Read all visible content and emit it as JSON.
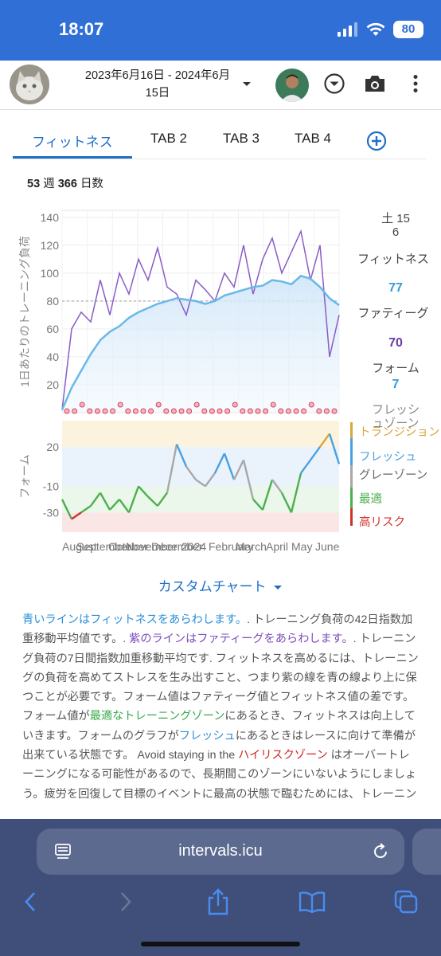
{
  "status_bar": {
    "time": "18:07",
    "battery": "80"
  },
  "header": {
    "date_range": "2023年6月16日 - 2024年6月15日"
  },
  "tabs": [
    {
      "label": "フィットネス",
      "active": true
    },
    {
      "label": "TAB 2"
    },
    {
      "label": "TAB 3"
    },
    {
      "label": "TAB 4"
    }
  ],
  "summary": {
    "weeks": "53",
    "weeks_unit": "週",
    "days": "366",
    "days_unit": "日数"
  },
  "chart_data": [
    {
      "type": "line",
      "ylabel": "1日あたりのトレーニング負荷",
      "yticks": [
        20,
        40,
        60,
        80,
        100,
        120,
        140
      ],
      "ylim": [
        0,
        145
      ],
      "xticks": [
        "August",
        "September",
        "October",
        "November",
        "December",
        "2024",
        "February",
        "March",
        "April",
        "May",
        "June"
      ],
      "series": [
        {
          "name": "フィットネス",
          "color": "#6ab8e8",
          "values": [
            2,
            18,
            30,
            42,
            52,
            58,
            62,
            68,
            72,
            75,
            78,
            80,
            82,
            81,
            80,
            78,
            80,
            84,
            86,
            88,
            90,
            91,
            95,
            94,
            92,
            98,
            96,
            90,
            82,
            77
          ]
        },
        {
          "name": "ファティーグ",
          "color": "#8a5cc8",
          "values": [
            2,
            60,
            72,
            65,
            95,
            70,
            100,
            85,
            110,
            95,
            118,
            90,
            85,
            70,
            95,
            88,
            80,
            100,
            90,
            120,
            85,
            110,
            125,
            100,
            115,
            130,
            95,
            120,
            40,
            70
          ]
        }
      ],
      "reference_line": 80
    },
    {
      "type": "line",
      "ylabel": "フォーム",
      "yticks": [
        20,
        -10,
        -30
      ],
      "zones": [
        {
          "name": "トランジション",
          "color": "#d4a83a"
        },
        {
          "name": "フレッシュ",
          "color": "#4aa0e0"
        },
        {
          "name": "グレーゾーン",
          "color": "#a8a8a8"
        },
        {
          "name": "最適",
          "color": "#4cb04c"
        },
        {
          "name": "高リスク",
          "color": "#d0312d"
        }
      ],
      "values": [
        -20,
        -35,
        -30,
        -25,
        -15,
        -28,
        -20,
        -30,
        -10,
        -18,
        -25,
        -15,
        22,
        5,
        -5,
        -10,
        0,
        15,
        -5,
        10,
        -20,
        -28,
        -5,
        -15,
        -30,
        0,
        10,
        20,
        30,
        7
      ]
    }
  ],
  "right_panel": {
    "date": "土 15\n6",
    "fitness_label": "フィットネス",
    "fitness_value": "77",
    "fatigue_label": "ファティーグ",
    "fatigue_value": "70",
    "form_label": "フォーム",
    "form_value": "7",
    "fresh_zone_label": "フレッシュゾーン"
  },
  "custom_chart_label": "カスタムチャート",
  "explanation": {
    "p1": "青いラインはフィットネスをあらわします。",
    "p2": ". トレーニング負荷の42日指数加重移動平均値です。. ",
    "p3": "紫のラインはファティーグをあらわします。",
    "p4": ". トレーニング負荷の7日間指数加重移動平均です. フィットネスを高めるには、トレーニングの負荷を高めてストレスを生み出すこと、つまり紫の線を青の線より上に保つことが必要です。フォーム値はファティーグ値とフィットネス値の差です。 フォーム値が",
    "p5": "最適なトレーニングゾーン",
    "p6": "にあるとき、フィットネスは向上していきます。フォームのグラフが",
    "p7": "フレッシュ",
    "p8": "にあるときはレースに向けて準備が出来ている状態です。 Avoid staying in the ",
    "p9": "ハイリスクゾーン",
    "p10": " はオーバートレーニングになる可能性があるので、長期間このゾーンにいないようにしましょう。疲労を回復して目標のイベントに最高の状態で臨むためには、トレーニン"
  },
  "browser": {
    "url": "intervals.icu"
  }
}
